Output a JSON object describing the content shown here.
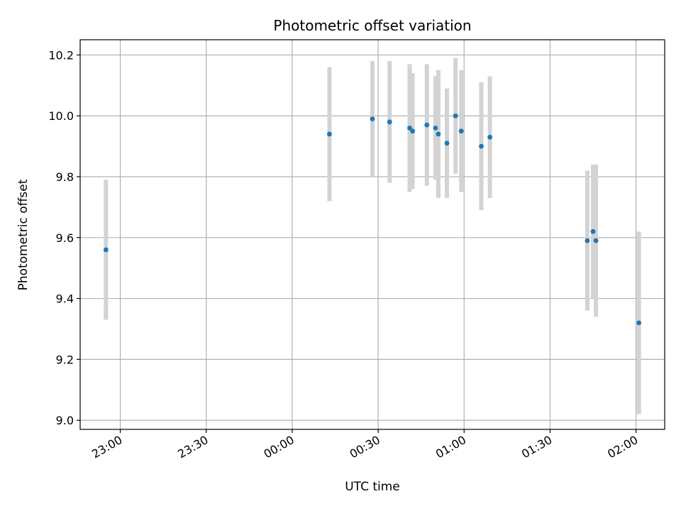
{
  "chart_data": {
    "type": "scatter",
    "title": "Photometric offset variation",
    "xlabel": "UTC time",
    "ylabel": "Photometric offset",
    "grid": true,
    "xlim": [
      "22:46",
      "02:10"
    ],
    "ylim": [
      8.97,
      10.25
    ],
    "x_ticks": [
      "23:00",
      "23:30",
      "00:00",
      "00:30",
      "01:00",
      "01:30",
      "02:00"
    ],
    "y_ticks": [
      "9.0",
      "9.2",
      "9.4",
      "9.6",
      "9.8",
      "10.0",
      "10.2"
    ],
    "marker_color": "#1f77b4",
    "errorbar_color": "#d3d3d3",
    "points": [
      {
        "x": "22:55",
        "y": 9.56,
        "yerr": 0.23
      },
      {
        "x": "00:13",
        "y": 9.94,
        "yerr": 0.22
      },
      {
        "x": "00:28",
        "y": 9.99,
        "yerr": 0.19
      },
      {
        "x": "00:34",
        "y": 9.98,
        "yerr": 0.2
      },
      {
        "x": "00:41",
        "y": 9.96,
        "yerr": 0.21
      },
      {
        "x": "00:42",
        "y": 9.95,
        "yerr": 0.19
      },
      {
        "x": "00:47",
        "y": 9.97,
        "yerr": 0.2
      },
      {
        "x": "00:50",
        "y": 9.96,
        "yerr": 0.17
      },
      {
        "x": "00:51",
        "y": 9.94,
        "yerr": 0.21
      },
      {
        "x": "00:54",
        "y": 9.91,
        "yerr": 0.18
      },
      {
        "x": "00:57",
        "y": 10.0,
        "yerr": 0.19
      },
      {
        "x": "00:59",
        "y": 9.95,
        "yerr": 0.2
      },
      {
        "x": "01:06",
        "y": 9.9,
        "yerr": 0.21
      },
      {
        "x": "01:09",
        "y": 9.93,
        "yerr": 0.2
      },
      {
        "x": "01:43",
        "y": 9.59,
        "yerr": 0.23
      },
      {
        "x": "01:45",
        "y": 9.62,
        "yerr": 0.22
      },
      {
        "x": "01:46",
        "y": 9.59,
        "yerr": 0.25
      },
      {
        "x": "02:01",
        "y": 9.32,
        "yerr": 0.3
      }
    ]
  }
}
